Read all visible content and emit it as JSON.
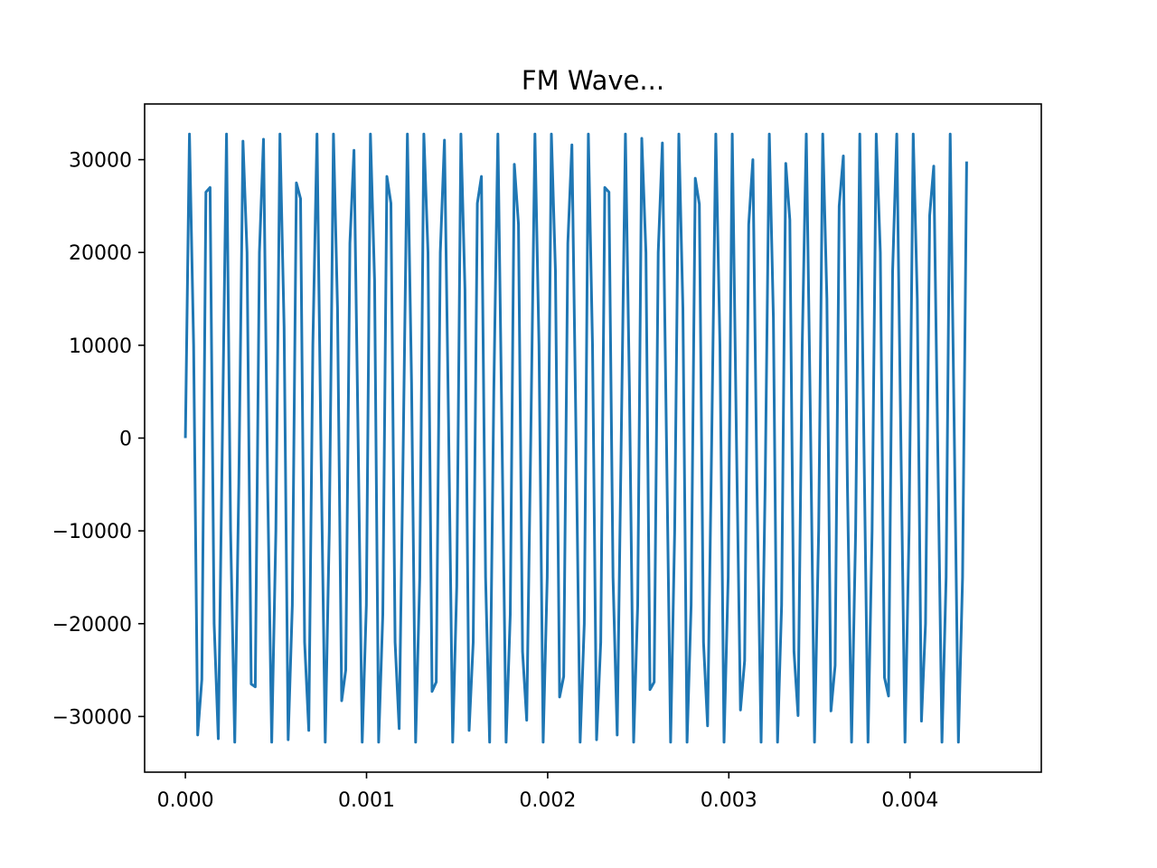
{
  "chart_data": {
    "type": "line",
    "title": "FM Wave...",
    "xlabel": "",
    "ylabel": "",
    "xlim": [
      -0.000225,
      0.004725
    ],
    "ylim": [
      -36000,
      36000
    ],
    "grid": false,
    "line_color": "#1f77b4",
    "x_ticks": [
      0,
      0.001,
      0.002,
      0.003,
      0.004
    ],
    "x_tick_labels": [
      "0.000",
      "0.001",
      "0.002",
      "0.003",
      "0.004"
    ],
    "y_ticks": [
      30000,
      20000,
      10000,
      0,
      -10000,
      -20000,
      -30000
    ],
    "y_tick_labels": [
      "30000",
      "20000",
      "10000",
      "0",
      "−10000",
      "−20000",
      "−30000"
    ],
    "series": [
      {
        "x_start": 0,
        "x_step": 2.27e-05,
        "y": [
          0,
          32767,
          10000,
          -32000,
          -26000,
          26500,
          27000,
          -20000,
          -32400,
          0,
          32767,
          -10000,
          -32767,
          -5000,
          32000,
          20000,
          -26500,
          -26800,
          20000,
          32200,
          -5000,
          -32767,
          -10000,
          32767,
          12000,
          -32500,
          -18000,
          27500,
          25800,
          -22000,
          -31500,
          10000,
          32767,
          -2000,
          -32767,
          -10000,
          32767,
          14000,
          -28300,
          -25000,
          21000,
          31000,
          0,
          -32767,
          -18000,
          32767,
          17000,
          -32767,
          -19000,
          28200,
          25300,
          -22000,
          -31300,
          0,
          32767,
          6000,
          -32767,
          -15000,
          32767,
          20000,
          -27300,
          -26300,
          20000,
          32100,
          2000,
          -32767,
          -16000,
          32767,
          16000,
          -31500,
          -22000,
          25300,
          28200,
          -15000,
          -32767,
          5000,
          32767,
          0,
          -32767,
          -19000,
          29500,
          23000,
          -23000,
          -30400,
          0,
          32767,
          10000,
          -32767,
          -15000,
          32767,
          18000,
          -27900,
          -25700,
          21000,
          31600,
          0,
          -32767,
          -20000,
          32767,
          10000,
          -32500,
          -22000,
          27000,
          26500,
          -15000,
          -32000,
          0,
          32767,
          5000,
          -32767,
          -18000,
          32300,
          20000,
          -27100,
          -26300,
          20000,
          31800,
          0,
          -32767,
          -10000,
          32767,
          14000,
          -32767,
          -18000,
          28000,
          25200,
          -22000,
          -31000,
          0,
          32767,
          10000,
          -32767,
          -15000,
          32767,
          0,
          -29300,
          -24000,
          23000,
          30000,
          -5000,
          -32767,
          -5000,
          32767,
          13000,
          -32767,
          -18000,
          29600,
          23500,
          -23000,
          -29900,
          10000,
          32767,
          2000,
          -32767,
          -10000,
          32767,
          15000,
          -29400,
          -24500,
          25000,
          30400,
          -5000,
          -32767,
          -10000,
          32767,
          0,
          -32767,
          -10000,
          32767,
          20000,
          -25800,
          -27800,
          18000,
          32767,
          0,
          -32767,
          -10000,
          32767,
          15000,
          -30500,
          -20000,
          24000,
          29300,
          -2000,
          -32767,
          -15000,
          32767,
          0,
          -32767,
          -15000,
          29800
        ]
      }
    ]
  }
}
